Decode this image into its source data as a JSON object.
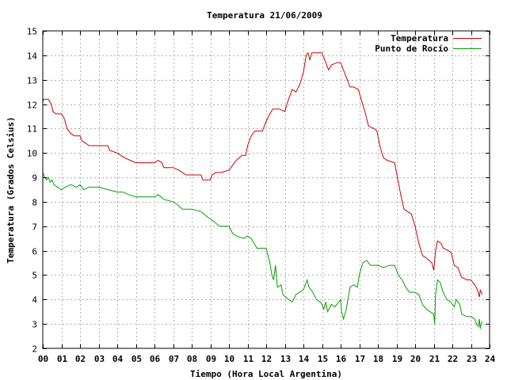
{
  "chart_data": {
    "type": "line",
    "title": "Temperatura 21/06/2009",
    "xlabel": "Tiempo (Hora Local Argentina)",
    "ylabel": "Temperatura (Grados Celsius)",
    "xlim": [
      0,
      24
    ],
    "ylim": [
      2,
      15
    ],
    "x_ticks": [
      "00",
      "01",
      "02",
      "03",
      "04",
      "05",
      "06",
      "07",
      "08",
      "09",
      "10",
      "11",
      "12",
      "13",
      "14",
      "15",
      "16",
      "17",
      "18",
      "19",
      "20",
      "21",
      "22",
      "23",
      "24"
    ],
    "y_ticks": [
      "2",
      "3",
      "4",
      "5",
      "6",
      "7",
      "8",
      "9",
      "10",
      "11",
      "12",
      "13",
      "14",
      "15"
    ],
    "grid": true,
    "legend_position": "top-right",
    "series": [
      {
        "name": "Temperatura",
        "color": "#d00000",
        "points": [
          [
            0,
            12.1
          ],
          [
            0.05,
            12.2
          ],
          [
            0.3,
            12.2
          ],
          [
            0.45,
            12.0
          ],
          [
            0.55,
            11.7
          ],
          [
            0.7,
            11.6
          ],
          [
            1.0,
            11.6
          ],
          [
            1.1,
            11.5
          ],
          [
            1.2,
            11.3
          ],
          [
            1.3,
            11.0
          ],
          [
            1.5,
            10.8
          ],
          [
            1.7,
            10.7
          ],
          [
            2.0,
            10.7
          ],
          [
            2.1,
            10.5
          ],
          [
            2.3,
            10.4
          ],
          [
            2.5,
            10.3
          ],
          [
            3.0,
            10.3
          ],
          [
            3.5,
            10.3
          ],
          [
            3.6,
            10.1
          ],
          [
            4.0,
            10.0
          ],
          [
            4.2,
            9.9
          ],
          [
            4.4,
            9.8
          ],
          [
            4.7,
            9.7
          ],
          [
            5.0,
            9.6
          ],
          [
            6.0,
            9.6
          ],
          [
            6.2,
            9.7
          ],
          [
            6.4,
            9.6
          ],
          [
            6.5,
            9.4
          ],
          [
            7.0,
            9.4
          ],
          [
            7.3,
            9.3
          ],
          [
            7.5,
            9.2
          ],
          [
            7.7,
            9.1
          ],
          [
            8.0,
            9.1
          ],
          [
            8.5,
            9.1
          ],
          [
            8.6,
            8.9
          ],
          [
            9.0,
            8.9
          ],
          [
            9.1,
            9.1
          ],
          [
            9.3,
            9.2
          ],
          [
            9.6,
            9.2
          ],
          [
            10.0,
            9.3
          ],
          [
            10.2,
            9.5
          ],
          [
            10.4,
            9.7
          ],
          [
            10.7,
            9.9
          ],
          [
            10.9,
            9.9
          ],
          [
            11.0,
            10.3
          ],
          [
            11.2,
            10.7
          ],
          [
            11.4,
            10.9
          ],
          [
            11.8,
            10.9
          ],
          [
            12.0,
            11.3
          ],
          [
            12.2,
            11.6
          ],
          [
            12.35,
            11.8
          ],
          [
            12.7,
            11.8
          ],
          [
            13.0,
            11.7
          ],
          [
            13.2,
            12.2
          ],
          [
            13.4,
            12.6
          ],
          [
            13.6,
            12.5
          ],
          [
            13.8,
            12.8
          ],
          [
            14.0,
            13.3
          ],
          [
            14.15,
            14.0
          ],
          [
            14.25,
            14.1
          ],
          [
            14.35,
            13.8
          ],
          [
            14.45,
            14.1
          ],
          [
            14.6,
            14.1
          ],
          [
            15.0,
            14.1
          ],
          [
            15.2,
            13.7
          ],
          [
            15.35,
            13.4
          ],
          [
            15.5,
            13.6
          ],
          [
            15.8,
            13.7
          ],
          [
            16.0,
            13.7
          ],
          [
            16.3,
            13.1
          ],
          [
            16.5,
            12.7
          ],
          [
            16.7,
            12.7
          ],
          [
            16.95,
            12.6
          ],
          [
            17.1,
            12.2
          ],
          [
            17.3,
            11.7
          ],
          [
            17.5,
            11.1
          ],
          [
            17.8,
            11.0
          ],
          [
            17.95,
            10.9
          ],
          [
            18.1,
            10.3
          ],
          [
            18.3,
            9.8
          ],
          [
            18.5,
            9.7
          ],
          [
            18.9,
            9.6
          ],
          [
            19.05,
            9.0
          ],
          [
            19.2,
            8.4
          ],
          [
            19.4,
            7.7
          ],
          [
            19.6,
            7.6
          ],
          [
            19.8,
            7.5
          ],
          [
            20.0,
            7.0
          ],
          [
            20.2,
            6.3
          ],
          [
            20.4,
            5.8
          ],
          [
            20.6,
            5.7
          ],
          [
            20.9,
            5.5
          ],
          [
            21.0,
            5.2
          ],
          [
            21.1,
            6.0
          ],
          [
            21.2,
            6.4
          ],
          [
            21.4,
            6.3
          ],
          [
            21.5,
            6.1
          ],
          [
            21.8,
            6.0
          ],
          [
            21.95,
            5.9
          ],
          [
            22.1,
            5.4
          ],
          [
            22.3,
            5.3
          ],
          [
            22.5,
            4.9
          ],
          [
            22.8,
            4.8
          ],
          [
            23.0,
            4.8
          ],
          [
            23.2,
            4.6
          ],
          [
            23.35,
            4.4
          ],
          [
            23.45,
            4.1
          ],
          [
            23.5,
            4.4
          ],
          [
            23.6,
            4.2
          ]
        ]
      },
      {
        "name": "Punto de Rocío",
        "color": "#00a000",
        "points": [
          [
            0,
            9.2
          ],
          [
            0.1,
            9.0
          ],
          [
            0.2,
            8.9
          ],
          [
            0.3,
            9.0
          ],
          [
            0.4,
            8.8
          ],
          [
            0.5,
            8.9
          ],
          [
            0.6,
            8.7
          ],
          [
            0.8,
            8.6
          ],
          [
            1.0,
            8.5
          ],
          [
            1.2,
            8.6
          ],
          [
            1.5,
            8.7
          ],
          [
            1.8,
            8.6
          ],
          [
            2.0,
            8.7
          ],
          [
            2.2,
            8.5
          ],
          [
            2.5,
            8.6
          ],
          [
            3.0,
            8.6
          ],
          [
            3.5,
            8.5
          ],
          [
            4.0,
            8.4
          ],
          [
            4.3,
            8.4
          ],
          [
            4.6,
            8.3
          ],
          [
            5.0,
            8.2
          ],
          [
            6.0,
            8.2
          ],
          [
            6.2,
            8.3
          ],
          [
            6.5,
            8.1
          ],
          [
            7.0,
            8.0
          ],
          [
            7.2,
            7.9
          ],
          [
            7.5,
            7.7
          ],
          [
            8.0,
            7.7
          ],
          [
            8.5,
            7.6
          ],
          [
            8.8,
            7.4
          ],
          [
            9.0,
            7.3
          ],
          [
            9.5,
            7.0
          ],
          [
            10.0,
            7.0
          ],
          [
            10.2,
            6.7
          ],
          [
            10.4,
            6.6
          ],
          [
            10.8,
            6.5
          ],
          [
            11.0,
            6.6
          ],
          [
            11.2,
            6.5
          ],
          [
            11.5,
            6.1
          ],
          [
            12.0,
            6.1
          ],
          [
            12.2,
            5.5
          ],
          [
            12.3,
            5.0
          ],
          [
            12.4,
            4.8
          ],
          [
            12.5,
            5.4
          ],
          [
            12.6,
            4.5
          ],
          [
            12.8,
            4.6
          ],
          [
            12.9,
            4.2
          ],
          [
            13.2,
            4.0
          ],
          [
            13.4,
            3.9
          ],
          [
            13.6,
            4.2
          ],
          [
            13.8,
            4.3
          ],
          [
            14.0,
            4.4
          ],
          [
            14.2,
            4.8
          ],
          [
            14.3,
            4.5
          ],
          [
            14.5,
            4.3
          ],
          [
            14.7,
            4.0
          ],
          [
            14.9,
            3.9
          ],
          [
            15.0,
            3.8
          ],
          [
            15.1,
            3.6
          ],
          [
            15.2,
            3.9
          ],
          [
            15.3,
            3.5
          ],
          [
            15.5,
            3.8
          ],
          [
            15.7,
            3.7
          ],
          [
            15.9,
            3.9
          ],
          [
            16.0,
            4.0
          ],
          [
            16.05,
            3.5
          ],
          [
            16.15,
            3.2
          ],
          [
            16.3,
            3.6
          ],
          [
            16.5,
            4.5
          ],
          [
            16.7,
            4.6
          ],
          [
            16.9,
            4.5
          ],
          [
            17.0,
            5.0
          ],
          [
            17.2,
            5.5
          ],
          [
            17.4,
            5.6
          ],
          [
            17.6,
            5.4
          ],
          [
            18.0,
            5.4
          ],
          [
            18.3,
            5.3
          ],
          [
            18.6,
            5.4
          ],
          [
            18.9,
            5.4
          ],
          [
            19.1,
            5.0
          ],
          [
            19.3,
            4.8
          ],
          [
            19.5,
            4.5
          ],
          [
            19.7,
            4.3
          ],
          [
            20.0,
            4.3
          ],
          [
            20.2,
            4.2
          ],
          [
            20.4,
            3.8
          ],
          [
            20.6,
            3.6
          ],
          [
            20.8,
            3.5
          ],
          [
            21.0,
            3.4
          ],
          [
            21.05,
            3.0
          ],
          [
            21.1,
            4.2
          ],
          [
            21.2,
            4.8
          ],
          [
            21.35,
            4.7
          ],
          [
            21.5,
            4.3
          ],
          [
            21.7,
            4.0
          ],
          [
            21.9,
            3.9
          ],
          [
            22.1,
            3.7
          ],
          [
            22.2,
            4.0
          ],
          [
            22.4,
            3.8
          ],
          [
            22.5,
            3.4
          ],
          [
            22.8,
            3.3
          ],
          [
            23.0,
            3.3
          ],
          [
            23.2,
            3.2
          ],
          [
            23.3,
            3.0
          ],
          [
            23.4,
            2.9
          ],
          [
            23.45,
            3.2
          ],
          [
            23.5,
            2.8
          ],
          [
            23.55,
            3.0
          ],
          [
            23.6,
            3.1
          ]
        ]
      }
    ]
  }
}
